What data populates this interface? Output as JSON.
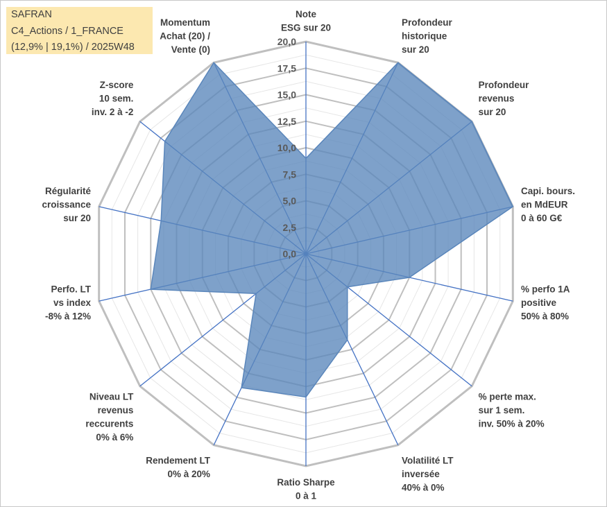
{
  "header": {
    "line1": "SAFRAN",
    "line2": "C4_Actions / 1_FRANCE",
    "line3": "(12,9% | 19,1%) / 2025W48"
  },
  "chart_data": {
    "type": "radar",
    "title": "SAFRAN",
    "rmin": 0,
    "rmax": 20,
    "ticks": [
      "0,0",
      "2,5",
      "5,0",
      "7,5",
      "10,0",
      "12,5",
      "15,0",
      "17,5",
      "20,0"
    ],
    "grid": true,
    "series_color": "#5a86bb",
    "axis_color": "#4472c4",
    "grid_color": "#bfbfbf",
    "categories": [
      [
        "Note",
        "ESG sur 20"
      ],
      [
        "Profondeur",
        "historique",
        "sur 20"
      ],
      [
        "Profondeur",
        "revenus",
        "sur 20"
      ],
      [
        "Capi. bours.",
        "en MdEUR",
        "0 à 60 G€"
      ],
      [
        "% perfo 1A",
        "positive",
        "50% à 80%"
      ],
      [
        "% perte max.",
        "sur 1 sem.",
        "inv. 50% à 20%"
      ],
      [
        "Volatilité LT",
        "inversée",
        "40% à 0%"
      ],
      [
        "Ratio Sharpe",
        "0 à 1"
      ],
      [
        "Rendement LT",
        "0% à 20%"
      ],
      [
        "Niveau LT",
        "revenus",
        "reccurents",
        "0% à 6%"
      ],
      [
        "Perfo. LT",
        "vs index",
        "-8% à 12%"
      ],
      [
        "Régularité",
        "croissance",
        "sur 20"
      ],
      [
        "Z-score",
        "10 sem.",
        "inv. 2 à -2"
      ],
      [
        "Momentum",
        "Achat (20) /",
        "Vente (0)"
      ]
    ],
    "series": [
      {
        "name": "SAFRAN",
        "values": [
          9.0,
          20.0,
          20.0,
          20.0,
          10.0,
          5.0,
          9.0,
          13.5,
          14.0,
          6.0,
          15.0,
          14.0,
          17.0,
          20.0
        ]
      }
    ]
  }
}
